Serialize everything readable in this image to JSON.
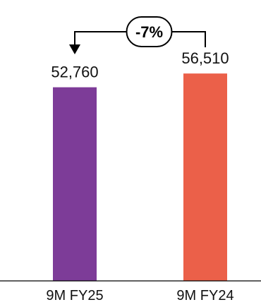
{
  "chart_data": {
    "type": "bar",
    "categories": [
      "9M FY25",
      "9M FY24"
    ],
    "values": [
      52760,
      56510
    ],
    "value_labels": [
      "52,760",
      "56,510"
    ],
    "bar_colors": [
      "#7D3C98",
      "#EB6049"
    ],
    "ylim": [
      0,
      60000
    ],
    "grid": false,
    "title": "",
    "xlabel": "",
    "ylabel": "",
    "annotations": [
      {
        "type": "change-arrow",
        "label": "-7%",
        "from_category": "9M FY24",
        "to_category": "9M FY25"
      }
    ]
  }
}
